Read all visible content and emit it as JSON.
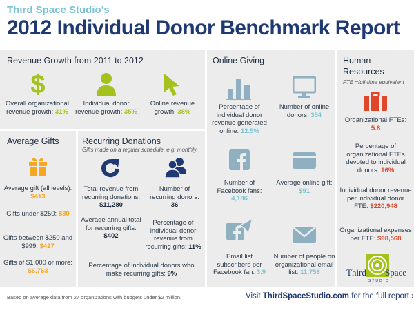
{
  "header": {
    "pre_title": "Third Space Studio’s",
    "title": "2012 Individual Donor Benchmark Report"
  },
  "revenue_growth": {
    "heading": "Revenue Growth from 2011 to 2012",
    "items": [
      {
        "icon": "dollar-sign-icon",
        "label": "Overall organizational revenue growth:",
        "value": "31%"
      },
      {
        "icon": "person-icon",
        "label": "Individual donor revenue growth:",
        "value": "35%"
      },
      {
        "icon": "cursor-arrow-icon",
        "label": "Online revenue growth:",
        "value": "38%"
      }
    ]
  },
  "average_gifts": {
    "heading": "Average Gifts",
    "icon": "gift-icon",
    "items": [
      {
        "label": "Average gift (all levels):",
        "value": "$413"
      },
      {
        "label": "Gifts under $250:",
        "value": "$80"
      },
      {
        "label": "Gifts between $250 and $999:",
        "value": "$427"
      },
      {
        "label": "Gifts of $1,000 or more:",
        "value": "$6,763"
      }
    ]
  },
  "recurring_donations": {
    "heading": "Recurring Donations",
    "subheading": "Gifts made on a regular schedule, e.g. monthly.",
    "items": [
      {
        "icon": "refresh-arrow-icon",
        "label": "Total revenue from recurring donations:",
        "value": "$11,280"
      },
      {
        "icon": "people-icon",
        "label": "Number of recurring donors:",
        "value": "36"
      },
      {
        "label": "Average annual total for recurring gifts:",
        "value": "$402"
      },
      {
        "label": "Percentage of individual donor revenue from recurring gifts:",
        "value": "11%"
      },
      {
        "label": "Percentage of individual donors who make recurring gifts:",
        "value": "9%"
      }
    ]
  },
  "online_giving": {
    "heading": "Online Giving",
    "items": [
      {
        "icon": "bar-chart-icon",
        "label": "Percentage of individual donor revenue generated online:",
        "value": "12.5%"
      },
      {
        "icon": "monitor-icon",
        "label": "Number of online donors:",
        "value": "354"
      },
      {
        "icon": "facebook-icon",
        "label": "Number of Facebook fans:",
        "value": "4,186"
      },
      {
        "icon": "credit-card-icon",
        "label": "Average online gift:",
        "value": "$91"
      },
      {
        "icon": "facebook-send-icon",
        "label": "Email list subscribers per Facebook fan:",
        "value": "3.9"
      },
      {
        "icon": "envelope-icon",
        "label": "Number of people on organizational email list:",
        "value": "11,758"
      }
    ]
  },
  "human_resources": {
    "heading_line1": "Human",
    "heading_line2": "Resources",
    "subheading": "FTE =full-time equivalent",
    "icon": "briefcase-icon",
    "items": [
      {
        "label": "Organizational FTEs:",
        "value": "5.8"
      },
      {
        "label": "Percentage of organizational FTEs devoted to individual donors:",
        "value": "16%"
      },
      {
        "label": "Individual donor revenue per individual donor FTE:",
        "value": "$220,948"
      },
      {
        "label": "Organizational expenses per FTE:",
        "value": "$98,568"
      }
    ]
  },
  "logo": {
    "word1": "Third",
    "word2": "Space",
    "word3": "STUDIO"
  },
  "footer": {
    "note": "Based on average data from 27 organizations with budgets under $2 million.",
    "cta_prefix": "Visit",
    "cta_site": "ThirdSpaceStudio.com",
    "cta_suffix": "for the full report",
    "cta_arrow": "›"
  },
  "colors": {
    "navy": "#1f3a73",
    "light_blue": "#7ec3d3",
    "green": "#a4c21d",
    "orange": "#f5a623",
    "red": "#e0462a",
    "panel_gray": "#ececec",
    "icon_gray_blue": "#8fb0c0"
  }
}
